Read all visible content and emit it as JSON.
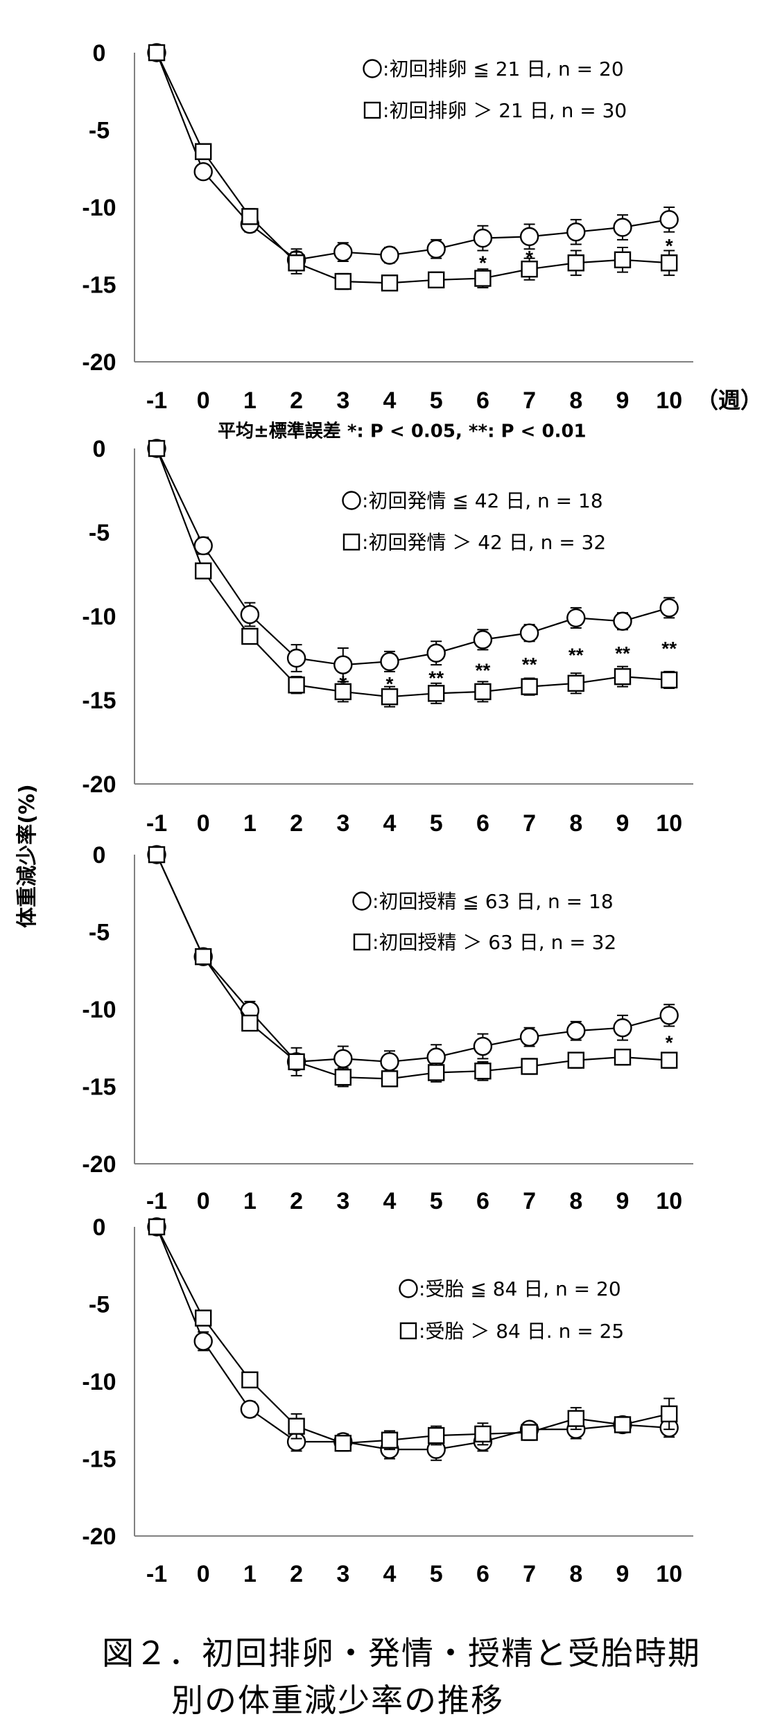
{
  "figure": {
    "ylabel": "体重減少率(%)",
    "note": "平均±標準誤差 *: P < 0.05, **: P < 0.01",
    "legend_sep": ":",
    "caption": [
      "図２．初回排卵・発情・授精と受胎時期",
      "別の体重減少率の推移"
    ],
    "colors": {
      "line": "#000000",
      "marker_fill": "#ffffff",
      "axis": "#808080"
    }
  },
  "chart_data": [
    {
      "type": "line",
      "x": [
        -1,
        0,
        1,
        2,
        3,
        4,
        5,
        6,
        7,
        8,
        9,
        10
      ],
      "x_unit": "（週）",
      "ylim": [
        -20,
        0
      ],
      "y_ticks": [
        0,
        -5,
        -10,
        -15,
        -20
      ],
      "grid": false,
      "legend_position": "top-right",
      "series": [
        {
          "name": "初回排卵 ≦ 21 日, n = 20",
          "marker": "circle",
          "values": [
            0,
            -7.7,
            -11.1,
            -13.4,
            -12.9,
            -13.1,
            -12.7,
            -12.0,
            -11.9,
            -11.6,
            -11.3,
            -10.8
          ],
          "se": [
            0,
            0.4,
            0.5,
            0.7,
            0.6,
            0.5,
            0.6,
            0.8,
            0.8,
            0.8,
            0.8,
            0.8
          ]
        },
        {
          "name": "初回排卵 ＞ 21 日, n = 30",
          "marker": "square",
          "values": [
            0,
            -6.4,
            -10.6,
            -13.6,
            -14.8,
            -14.9,
            -14.7,
            -14.6,
            -14.0,
            -13.6,
            -13.4,
            -13.6
          ],
          "se": [
            0,
            0.4,
            0.5,
            0.7,
            0.5,
            0.4,
            0.5,
            0.6,
            0.7,
            0.8,
            0.8,
            0.8
          ]
        }
      ],
      "significance": [
        {
          "x": 6,
          "label": "*"
        },
        {
          "x": 7,
          "label": "*"
        },
        {
          "x": 10,
          "label": "*"
        }
      ]
    },
    {
      "type": "line",
      "x": [
        -1,
        0,
        1,
        2,
        3,
        4,
        5,
        6,
        7,
        8,
        9,
        10
      ],
      "ylim": [
        -20,
        0
      ],
      "y_ticks": [
        0,
        -5,
        -10,
        -15,
        -20
      ],
      "grid": false,
      "legend_position": "top-right",
      "series": [
        {
          "name": "初回発情 ≦ 42 日, n = 18",
          "marker": "circle",
          "values": [
            0,
            -5.8,
            -9.9,
            -12.5,
            -12.9,
            -12.7,
            -12.2,
            -11.4,
            -11.0,
            -10.1,
            -10.3,
            -9.5
          ],
          "se": [
            0,
            0.5,
            0.7,
            0.8,
            1.0,
            0.6,
            0.7,
            0.6,
            0.5,
            0.6,
            0.5,
            0.6
          ]
        },
        {
          "name": "初回発情 ＞ 42 日, n = 32",
          "marker": "square",
          "values": [
            0,
            -7.3,
            -11.2,
            -14.1,
            -14.5,
            -14.8,
            -14.6,
            -14.5,
            -14.2,
            -14.0,
            -13.6,
            -13.8
          ],
          "se": [
            0,
            0.3,
            0.4,
            0.5,
            0.6,
            0.6,
            0.6,
            0.6,
            0.5,
            0.6,
            0.6,
            0.5
          ]
        }
      ],
      "significance": [
        {
          "x": 3,
          "label": "*"
        },
        {
          "x": 4,
          "label": "*"
        },
        {
          "x": 5,
          "label": "**"
        },
        {
          "x": 6,
          "label": "**"
        },
        {
          "x": 7,
          "label": "**"
        },
        {
          "x": 8,
          "label": "**"
        },
        {
          "x": 9,
          "label": "**"
        },
        {
          "x": 10,
          "label": "**"
        }
      ]
    },
    {
      "type": "line",
      "x": [
        -1,
        0,
        1,
        2,
        3,
        4,
        5,
        6,
        7,
        8,
        9,
        10
      ],
      "ylim": [
        -20,
        0
      ],
      "y_ticks": [
        0,
        -5,
        -10,
        -15,
        -20
      ],
      "grid": false,
      "legend_position": "top-right",
      "series": [
        {
          "name": "初回授精 ≦ 63 日, n = 18",
          "marker": "circle",
          "values": [
            0,
            -6.6,
            -10.1,
            -13.4,
            -13.2,
            -13.4,
            -13.1,
            -12.4,
            -11.8,
            -11.4,
            -11.2,
            -10.4
          ],
          "se": [
            0,
            0.4,
            0.6,
            0.9,
            0.8,
            0.7,
            0.8,
            0.8,
            0.6,
            0.6,
            0.8,
            0.7
          ]
        },
        {
          "name": "初回授精 ＞ 63 日, n = 32",
          "marker": "square",
          "values": [
            0,
            -6.6,
            -10.9,
            -13.4,
            -14.4,
            -14.5,
            -14.1,
            -14.0,
            -13.7,
            -13.3,
            -13.1,
            -13.3
          ],
          "se": [
            0,
            0.3,
            0.4,
            0.5,
            0.6,
            0.5,
            0.6,
            0.6,
            0.5,
            0.5,
            0.5,
            0.5
          ]
        }
      ],
      "significance": [
        {
          "x": 10,
          "label": "*"
        }
      ]
    },
    {
      "type": "line",
      "x": [
        -1,
        0,
        1,
        2,
        3,
        4,
        5,
        6,
        7,
        8,
        9,
        10
      ],
      "ylim": [
        -20,
        0
      ],
      "y_ticks": [
        0,
        -5,
        -10,
        -15,
        -20
      ],
      "grid": false,
      "legend_position": "top-right",
      "series": [
        {
          "name": "受胎 ≦ 84 日, n = 20",
          "marker": "circle",
          "values": [
            0,
            -7.4,
            -11.8,
            -13.9,
            -13.9,
            -14.4,
            -14.4,
            -13.9,
            -13.1,
            -13.1,
            -12.8,
            -13.0
          ],
          "se": [
            0,
            0.6,
            0.5,
            0.6,
            0.5,
            0.6,
            0.7,
            0.6,
            0.4,
            0.6,
            0.5,
            0.6
          ]
        },
        {
          "name": "受胎 ＞ 84 日. n = 25",
          "marker": "square",
          "values": [
            0,
            -5.9,
            -9.9,
            -12.9,
            -14.0,
            -13.8,
            -13.5,
            -13.4,
            -13.3,
            -12.4,
            -12.8,
            -12.1
          ],
          "se": [
            0,
            0.4,
            0.5,
            0.8,
            0.5,
            0.6,
            0.6,
            0.7,
            0.5,
            0.7,
            0.5,
            1.0
          ]
        }
      ],
      "significance": []
    }
  ]
}
